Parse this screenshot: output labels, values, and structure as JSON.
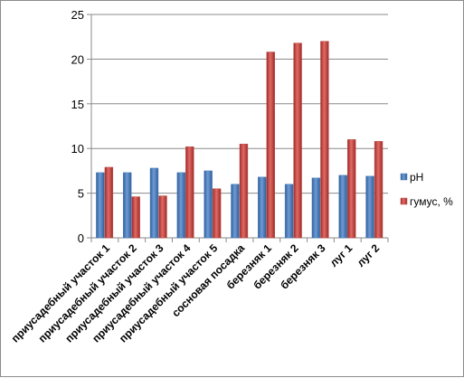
{
  "chart_data": {
    "type": "bar",
    "title": "",
    "xlabel": "",
    "ylabel": "",
    "ylim": [
      0,
      25
    ],
    "yticks": [
      0,
      5,
      10,
      15,
      20,
      25
    ],
    "grid": true,
    "legend_position": "right",
    "categories": [
      "приусадебный участок 1",
      "приусадебный участок 2",
      "приусадебный участок 3",
      "приусадебный участок 4",
      "приусадебный участок 5",
      "сосновая посадка",
      "березняк 1",
      "березняк 2",
      "березняк 3",
      "луг 1",
      "луг 2"
    ],
    "series": [
      {
        "name": "pH",
        "color": "#4a7ebb",
        "values": [
          7.3,
          7.3,
          7.8,
          7.3,
          7.5,
          6.0,
          6.8,
          6.0,
          6.7,
          7.0,
          6.9
        ]
      },
      {
        "name": "гумус, %",
        "color": "#c0504d",
        "values": [
          7.9,
          4.6,
          4.7,
          10.2,
          5.5,
          10.5,
          20.8,
          21.8,
          22.0,
          11.0,
          10.8
        ]
      }
    ]
  }
}
